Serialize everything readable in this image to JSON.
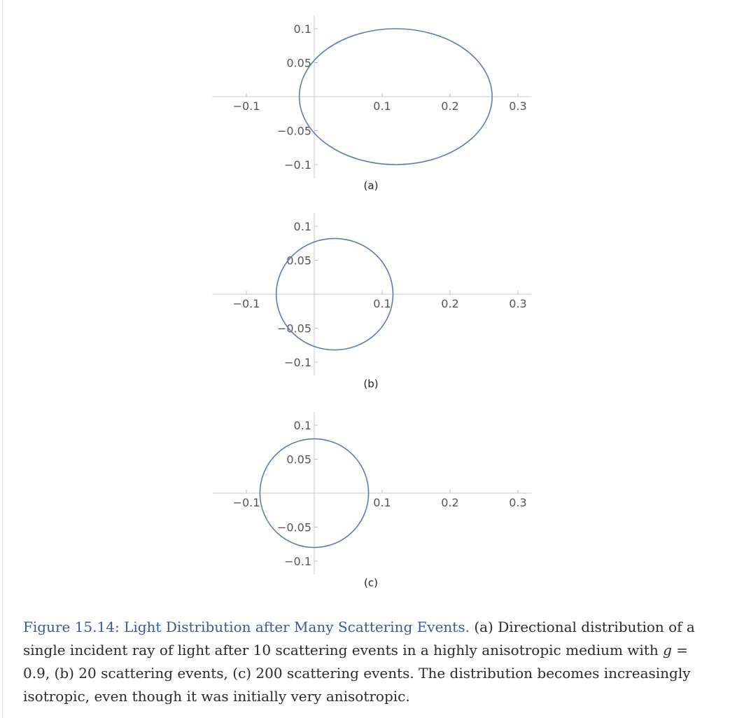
{
  "chart_data": [
    {
      "type": "line",
      "panel_label": "(a)",
      "x_ticks": [
        -0.1,
        0.1,
        0.2,
        0.3
      ],
      "x_tick_labels": [
        "−0.1",
        "0.1",
        "0.2",
        "0.3"
      ],
      "y_ticks": [
        0.1,
        0.05,
        -0.05,
        -0.1
      ],
      "y_tick_labels": [
        "0.1",
        "0.05",
        "−0.05",
        "−0.1"
      ],
      "xlim": [
        -0.15,
        0.32
      ],
      "ylim": [
        -0.12,
        0.12
      ],
      "grid": false,
      "curve": {
        "shape": "ellipse",
        "center": [
          0.12,
          0.0
        ],
        "semi_axes": [
          0.142,
          0.1
        ]
      },
      "color": "#5b7db5"
    },
    {
      "type": "line",
      "panel_label": "(b)",
      "x_ticks": [
        -0.1,
        0.1,
        0.2,
        0.3
      ],
      "x_tick_labels": [
        "−0.1",
        "0.1",
        "0.2",
        "0.3"
      ],
      "y_ticks": [
        0.1,
        0.05,
        -0.05,
        -0.1
      ],
      "y_tick_labels": [
        "0.1",
        "0.05",
        "−0.05",
        "−0.1"
      ],
      "xlim": [
        -0.15,
        0.32
      ],
      "ylim": [
        -0.12,
        0.12
      ],
      "grid": false,
      "curve": {
        "shape": "ellipse",
        "center": [
          0.03,
          0.0
        ],
        "semi_axes": [
          0.086,
          0.082
        ]
      },
      "color": "#5b7db5"
    },
    {
      "type": "line",
      "panel_label": "(c)",
      "x_ticks": [
        -0.1,
        0.1,
        0.2,
        0.3
      ],
      "x_tick_labels": [
        "−0.1",
        "0.1",
        "0.2",
        "0.3"
      ],
      "y_ticks": [
        0.1,
        0.05,
        -0.05,
        -0.1
      ],
      "y_tick_labels": [
        "0.1",
        "0.05",
        "−0.05",
        "−0.1"
      ],
      "xlim": [
        -0.15,
        0.32
      ],
      "ylim": [
        -0.12,
        0.12
      ],
      "grid": false,
      "curve": {
        "shape": "ellipse",
        "center": [
          0.0,
          0.0
        ],
        "semi_axes": [
          0.08,
          0.08
        ]
      },
      "color": "#5b7db5"
    }
  ],
  "caption": {
    "title": "Figure 15.14: Light Distribution after Many Scattering Events.",
    "text_1": " (a) Directional distribution of a single incident ray of light after 10 scattering events in a highly anisotropic medium with ",
    "math_var": "g",
    "math_eq": " = 0.9",
    "text_2": ", (b) 20 scattering events, (c) 200 scattering events. The distribution becomes increasingly isotropic, even though it was initially very anisotropic."
  }
}
